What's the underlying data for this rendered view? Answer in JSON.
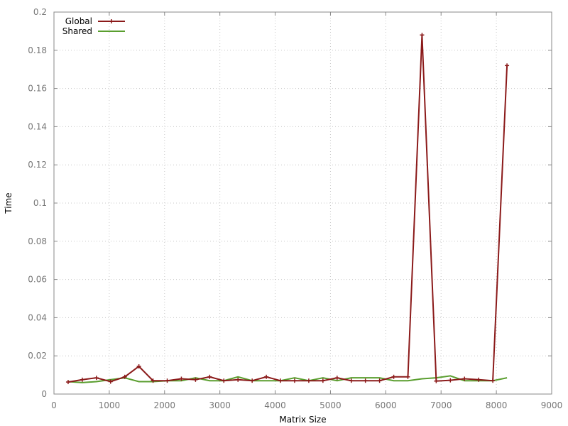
{
  "chart_data": {
    "type": "line",
    "title": "",
    "xlabel": "Matrix Size",
    "ylabel": "Time",
    "xlim": [
      0,
      9000
    ],
    "ylim": [
      0,
      0.2
    ],
    "x_ticks": [
      0,
      1000,
      2000,
      3000,
      4000,
      5000,
      6000,
      7000,
      8000,
      9000
    ],
    "x_tick_labels": [
      "0",
      "1000",
      "2000",
      "3000",
      "4000",
      "5000",
      "6000",
      "7000",
      "8000",
      "9000"
    ],
    "y_ticks": [
      0,
      0.02,
      0.04,
      0.06,
      0.08,
      0.1,
      0.12,
      0.14,
      0.16,
      0.18,
      0.2
    ],
    "y_tick_labels": [
      "0",
      "0.02",
      "0.04",
      "0.06",
      "0.08",
      "0.1",
      "0.12",
      "0.14",
      "0.16",
      "0.18",
      "0.2"
    ],
    "grid": true,
    "legend_position": "top-left",
    "x": [
      256,
      512,
      768,
      1024,
      1280,
      1536,
      1792,
      2048,
      2304,
      2560,
      2816,
      3072,
      3328,
      3584,
      3840,
      4096,
      4352,
      4608,
      4864,
      5120,
      5376,
      5632,
      5888,
      6144,
      6400,
      6656,
      6912,
      7168,
      7424,
      7680,
      7936,
      8192
    ],
    "series": [
      {
        "name": "Global",
        "color": "#8b1a1a",
        "marker": "plus",
        "values": [
          0.0063,
          0.0075,
          0.0085,
          0.0065,
          0.009,
          0.0145,
          0.007,
          0.007,
          0.008,
          0.0075,
          0.009,
          0.007,
          0.0075,
          0.007,
          0.009,
          0.007,
          0.007,
          0.007,
          0.007,
          0.0085,
          0.007,
          0.007,
          0.007,
          0.009,
          0.009,
          0.188,
          0.0068,
          0.0072,
          0.008,
          0.0075,
          0.007,
          0.172
        ]
      },
      {
        "name": "Shared",
        "color": "#5a9e2f",
        "marker": "none",
        "values": [
          0.0065,
          0.006,
          0.0065,
          0.0075,
          0.0085,
          0.0065,
          0.0065,
          0.007,
          0.007,
          0.0085,
          0.007,
          0.007,
          0.009,
          0.007,
          0.007,
          0.007,
          0.0085,
          0.007,
          0.0085,
          0.007,
          0.0085,
          0.0085,
          0.0085,
          0.007,
          0.007,
          0.008,
          0.0085,
          0.0095,
          0.007,
          0.007,
          0.007,
          0.0085
        ]
      }
    ]
  }
}
